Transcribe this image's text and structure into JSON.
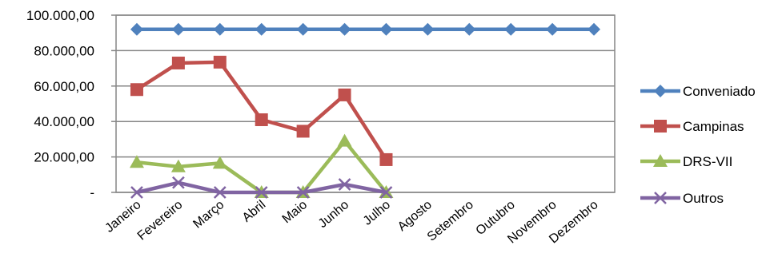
{
  "chart_data": {
    "type": "line",
    "categories": [
      "Janeiro",
      "Fevereiro",
      "Março",
      "Abril",
      "Maio",
      "Junho",
      "Julho",
      "Agosto",
      "Setembro",
      "Outubro",
      "Novembro",
      "Dezembro"
    ],
    "y_ticks": [
      "-",
      "20.000,00",
      "40.000,00",
      "60.000,00",
      "80.000,00",
      "100.000,00"
    ],
    "ylim": [
      0,
      100000
    ],
    "grid": true,
    "legend_position": "right",
    "series": [
      {
        "name": "Conveniado",
        "color": "#4F81BD",
        "marker": "diamond",
        "values": [
          92000,
          92000,
          92000,
          92000,
          92000,
          92000,
          92000,
          92000,
          92000,
          92000,
          92000,
          92000
        ]
      },
      {
        "name": "Campinas",
        "color": "#C0504D",
        "marker": "square",
        "values": [
          58000,
          73000,
          73500,
          41000,
          34500,
          55000,
          18500,
          null,
          null,
          null,
          null,
          null
        ]
      },
      {
        "name": "DRS-VII",
        "color": "#9BBB59",
        "marker": "triangle",
        "values": [
          17000,
          14500,
          16500,
          0,
          0,
          29000,
          0,
          null,
          null,
          null,
          null,
          null
        ]
      },
      {
        "name": "Outros",
        "color": "#8064A2",
        "marker": "x",
        "values": [
          0,
          5500,
          0,
          0,
          0,
          4500,
          0,
          null,
          null,
          null,
          null,
          null
        ]
      }
    ]
  }
}
